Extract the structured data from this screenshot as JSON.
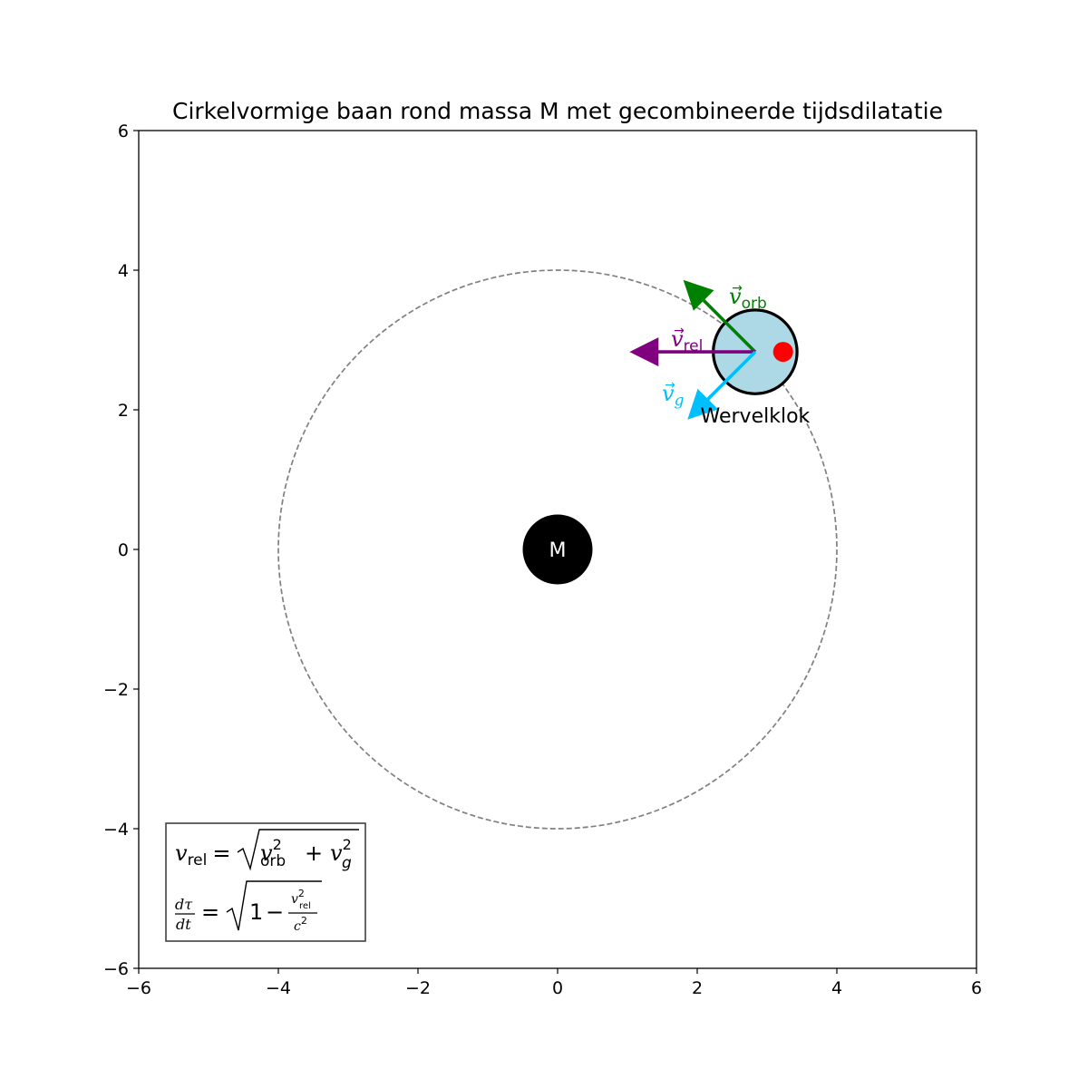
{
  "chart_data": {
    "type": "diagram",
    "title": "Cirkelvormige baan rond massa M met gecombineerde tijdsdilatatie",
    "xlim": [
      -6,
      6
    ],
    "ylim": [
      -6,
      6
    ],
    "xticks": [
      "−6",
      "−4",
      "−2",
      "0",
      "2",
      "4",
      "6"
    ],
    "yticks": [
      "−6",
      "−4",
      "−2",
      "0",
      "2",
      "4",
      "6"
    ],
    "grid": false,
    "central_mass": {
      "label": "M",
      "x": 0,
      "y": 0,
      "radius": 0.5,
      "color": "#000000"
    },
    "orbit": {
      "radius": 4,
      "center": [
        0,
        0
      ],
      "style": "dashed",
      "color": "#808080"
    },
    "clock": {
      "label": "Wervelklok",
      "x": 2.83,
      "y": 2.83,
      "radius": 0.6,
      "fill": "#add8e6",
      "edge": "#000000",
      "marker": {
        "x": 3.23,
        "y": 2.83,
        "color": "#ff0000"
      }
    },
    "vectors": [
      {
        "name": "v_orb",
        "label": "orb",
        "color": "#008000",
        "from": [
          2.83,
          2.83
        ],
        "to": [
          1.8,
          3.86
        ]
      },
      {
        "name": "v_rel",
        "label": "rel",
        "color": "#800080",
        "from": [
          2.83,
          2.83
        ],
        "to": [
          1.03,
          2.83
        ]
      },
      {
        "name": "v_g",
        "label": "g",
        "color": "#00bfff",
        "from": [
          2.83,
          2.83
        ],
        "to": [
          1.86,
          1.86
        ]
      }
    ],
    "formula_box": {
      "line1": "v_rel = √(v_orb² + v_g²)",
      "line2": "dτ/dt = √(1 − v_rel²/c²)"
    }
  },
  "glyphs": {
    "v": "v",
    "g": "g",
    "c": "c",
    "d": "d",
    "t": "t",
    "tau": "τ",
    "rel": "rel",
    "orb": "orb",
    "two": "2",
    "eq": "=",
    "plus": "+",
    "one": "1",
    "minus": "−",
    "arrow": "→"
  }
}
